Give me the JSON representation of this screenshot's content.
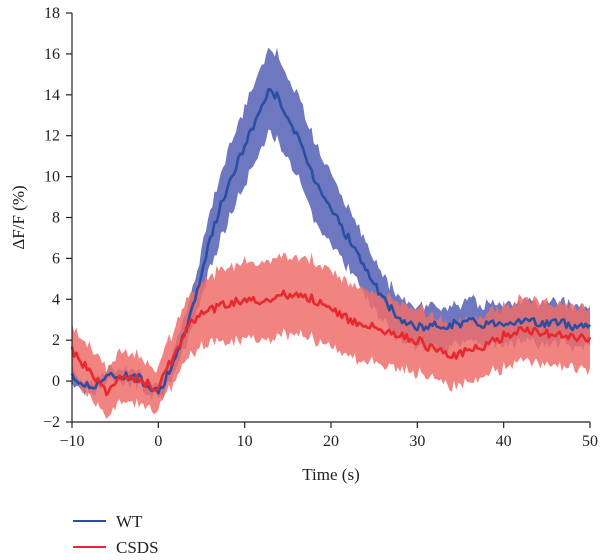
{
  "chart_data": {
    "type": "line",
    "xlabel": "Time (s)",
    "ylabel": "ΔF/F (%)",
    "xlim": [
      -10,
      50
    ],
    "ylim": [
      -2,
      18
    ],
    "x_ticks": [
      -10,
      0,
      10,
      20,
      30,
      40,
      50
    ],
    "y_ticks": [
      -2,
      0,
      2,
      4,
      6,
      8,
      10,
      12,
      14,
      16,
      18
    ],
    "grid": false,
    "legend_position": "bottom-left",
    "series": [
      {
        "name": "WT",
        "color": "#2b4ea3",
        "band_color": "#5360b5",
        "x": [
          -10,
          -8,
          -6,
          -4,
          -2,
          0,
          2,
          4,
          6,
          8,
          10,
          12,
          13,
          14,
          16,
          18,
          20,
          22,
          24,
          26,
          28,
          30,
          32,
          34,
          36,
          38,
          40,
          42,
          44,
          46,
          48,
          50
        ],
        "y": [
          0.2,
          -0.3,
          0.2,
          0.3,
          0.1,
          -0.5,
          1.0,
          3.6,
          7.0,
          9.5,
          11.5,
          13.5,
          14.3,
          13.8,
          12.0,
          10.0,
          8.5,
          7.0,
          5.5,
          4.0,
          3.0,
          2.6,
          2.7,
          2.8,
          2.9,
          2.8,
          2.9,
          3.0,
          2.8,
          2.9,
          2.7,
          2.8
        ],
        "err": [
          0.3,
          0.3,
          0.3,
          0.3,
          0.3,
          0.3,
          0.6,
          0.9,
          1.4,
          1.7,
          1.9,
          2.0,
          2.1,
          2.1,
          2.0,
          1.9,
          1.7,
          1.5,
          1.3,
          1.1,
          1.0,
          1.0,
          1.0,
          1.0,
          1.0,
          1.0,
          1.0,
          1.0,
          1.0,
          1.0,
          1.0,
          1.0
        ]
      },
      {
        "name": "CSDS",
        "color": "#e8282d",
        "band_color": "#ef6d6a",
        "x": [
          -10,
          -8,
          -6,
          -4,
          -2,
          0,
          2,
          4,
          6,
          8,
          10,
          12,
          14,
          16,
          18,
          20,
          22,
          24,
          26,
          28,
          30,
          32,
          34,
          36,
          38,
          40,
          42,
          44,
          46,
          48,
          50
        ],
        "y": [
          1.5,
          0.5,
          -0.5,
          0.3,
          0.0,
          -0.4,
          1.5,
          3.0,
          3.5,
          3.8,
          4.0,
          3.8,
          4.2,
          4.3,
          4.0,
          3.5,
          3.0,
          2.8,
          2.5,
          2.2,
          2.0,
          1.5,
          1.2,
          1.5,
          1.8,
          2.2,
          2.5,
          2.4,
          2.3,
          2.2,
          2.0
        ],
        "err": [
          1.2,
          1.2,
          1.2,
          1.2,
          1.2,
          1.0,
          1.3,
          1.5,
          1.7,
          1.8,
          1.9,
          1.9,
          1.9,
          1.9,
          1.9,
          1.8,
          1.8,
          1.7,
          1.7,
          1.6,
          1.6,
          1.5,
          1.5,
          1.5,
          1.5,
          1.5,
          1.5,
          1.5,
          1.5,
          1.5,
          1.5
        ]
      }
    ]
  }
}
